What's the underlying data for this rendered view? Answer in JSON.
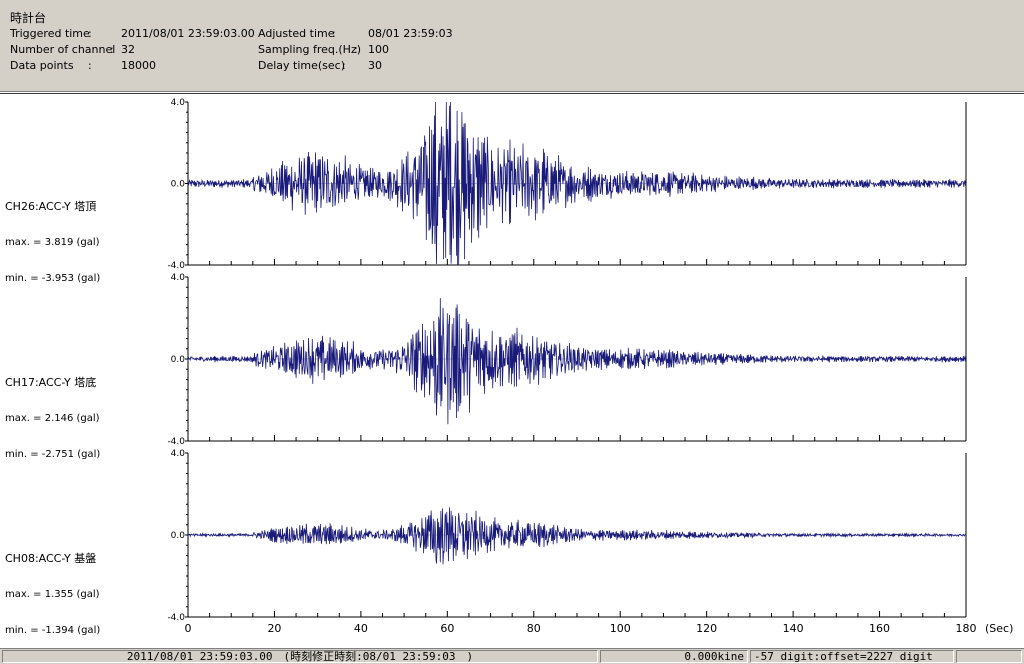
{
  "header": {
    "title": "時計台",
    "triggered_label": "Triggered time",
    "triggered_value": "2011/08/01 23:59:03.00",
    "channels_label": "Number of channel",
    "channels_value": "32",
    "datapoints_label": "Data points",
    "datapoints_value": "18000",
    "adjusted_label": "Adjusted time",
    "adjusted_value": "08/01 23:59:03",
    "sampling_label": "Sampling freq.(Hz)",
    "sampling_value": "100",
    "delay_label": "Delay time(sec)",
    "delay_value": "30"
  },
  "channels": [
    {
      "name": "CH26:ACC-Y 塔頂",
      "max": "max. = 3.819 (gal)",
      "min": "min. = -3.953 (gal)"
    },
    {
      "name": "CH17:ACC-Y 塔底",
      "max": "max. = 2.146 (gal)",
      "min": "min. = -2.751 (gal)"
    },
    {
      "name": "CH08:ACC-Y 基盤",
      "max": "max. = 1.355 (gal)",
      "min": "min. = -1.394 (gal)"
    }
  ],
  "chart_data": {
    "type": "line",
    "x_unit": "(Sec)",
    "xlim": [
      0,
      180
    ],
    "x_ticks": [
      "0",
      "20",
      "40",
      "60",
      "80",
      "100",
      "120",
      "140",
      "160",
      "180"
    ],
    "ylim": [
      -4.0,
      4.0
    ],
    "y_ticks": [
      "4.0",
      "0.0",
      "-4.0"
    ],
    "trace_color": "#1a1a7a",
    "series": [
      {
        "name": "CH26:ACC-Y 塔頂",
        "max": 3.819,
        "min": -3.953
      },
      {
        "name": "CH17:ACC-Y 塔底",
        "max": 2.146,
        "min": -2.751
      },
      {
        "name": "CH08:ACC-Y 基盤",
        "max": 1.355,
        "min": -1.394
      }
    ]
  },
  "status": {
    "time": "2011/08/01 23:59:03.00　(時刻修正時刻:08/01 23:59:03　)",
    "kine": "0.000kine",
    "digit": "-57 digit:offset=2227 digit"
  }
}
